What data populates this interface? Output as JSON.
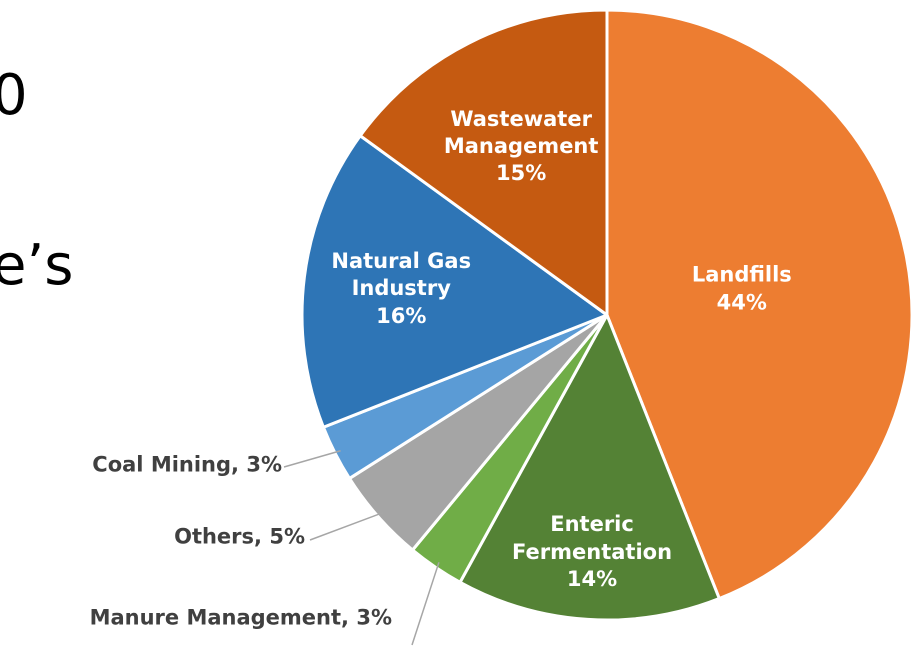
{
  "slide_text": [
    "0",
    "e’s"
  ],
  "chart_data": {
    "type": "pie",
    "categories": [
      "Landfills",
      "Enteric Fermentation",
      "Manure Management",
      "Others",
      "Coal Mining",
      "Natural Gas Industry",
      "Wastewater Management"
    ],
    "values": [
      44,
      14,
      3,
      5,
      3,
      16,
      15
    ],
    "value_labels": [
      "44%",
      "14%",
      "3%",
      "5%",
      "3%",
      "16%",
      "15%"
    ],
    "colors": [
      "#ED7D31",
      "#548235",
      "#70AD47",
      "#A5A5A5",
      "#5B9BD5",
      "#2E75B6",
      "#C55A11"
    ]
  }
}
